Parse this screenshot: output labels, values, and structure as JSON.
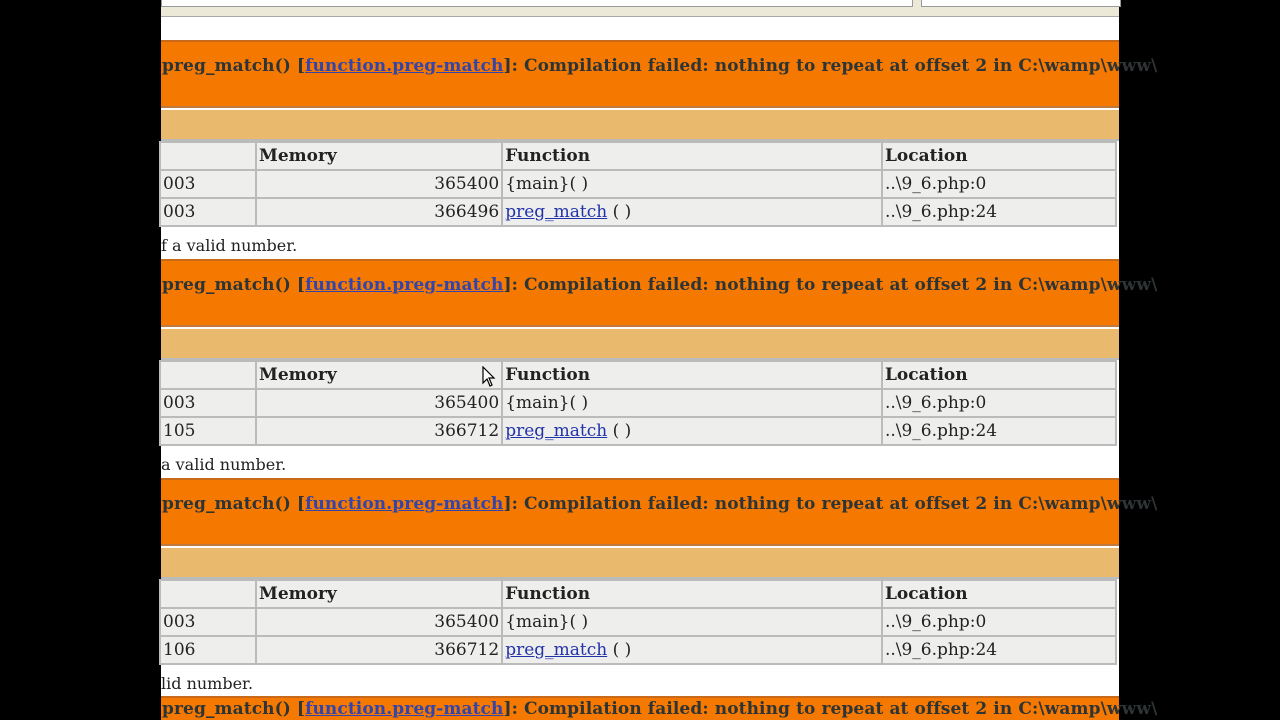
{
  "error_message": {
    "prefix": "preg_match() [",
    "link": "function.preg-match",
    "suffix": "]:  Compilation failed: nothing to repeat at offset 2 in C:\\wamp\\www\\"
  },
  "table_headers": [
    "",
    "Memory",
    "Function",
    "Location"
  ],
  "blocks": [
    {
      "rows": [
        {
          "time": "003",
          "memory": "365400",
          "function": "{main}( )",
          "function_is_link": false,
          "location": "..\\9_6.php:0"
        },
        {
          "time": "003",
          "memory": "366496",
          "function": "preg_match",
          "args": " ( )",
          "function_is_link": true,
          "location": "..\\9_6.php:24"
        }
      ],
      "tail_text": "f a valid number."
    },
    {
      "rows": [
        {
          "time": "003",
          "memory": "365400",
          "function": "{main}( )",
          "function_is_link": false,
          "location": "..\\9_6.php:0"
        },
        {
          "time": "105",
          "memory": "366712",
          "function": "preg_match",
          "args": " ( )",
          "function_is_link": true,
          "location": "..\\9_6.php:24"
        }
      ],
      "tail_text": "a valid number."
    },
    {
      "rows": [
        {
          "time": "003",
          "memory": "365400",
          "function": "{main}( )",
          "function_is_link": false,
          "location": "..\\9_6.php:0"
        },
        {
          "time": "106",
          "memory": "366712",
          "function": "preg_match",
          "args": " ( )",
          "function_is_link": true,
          "location": "..\\9_6.php:24"
        }
      ],
      "tail_text": "lid number."
    }
  ],
  "colors": {
    "error_bg": "#f57900",
    "stack_bg": "#e9b96e",
    "cell_bg": "#eeeeec",
    "link": "#2233aa"
  }
}
